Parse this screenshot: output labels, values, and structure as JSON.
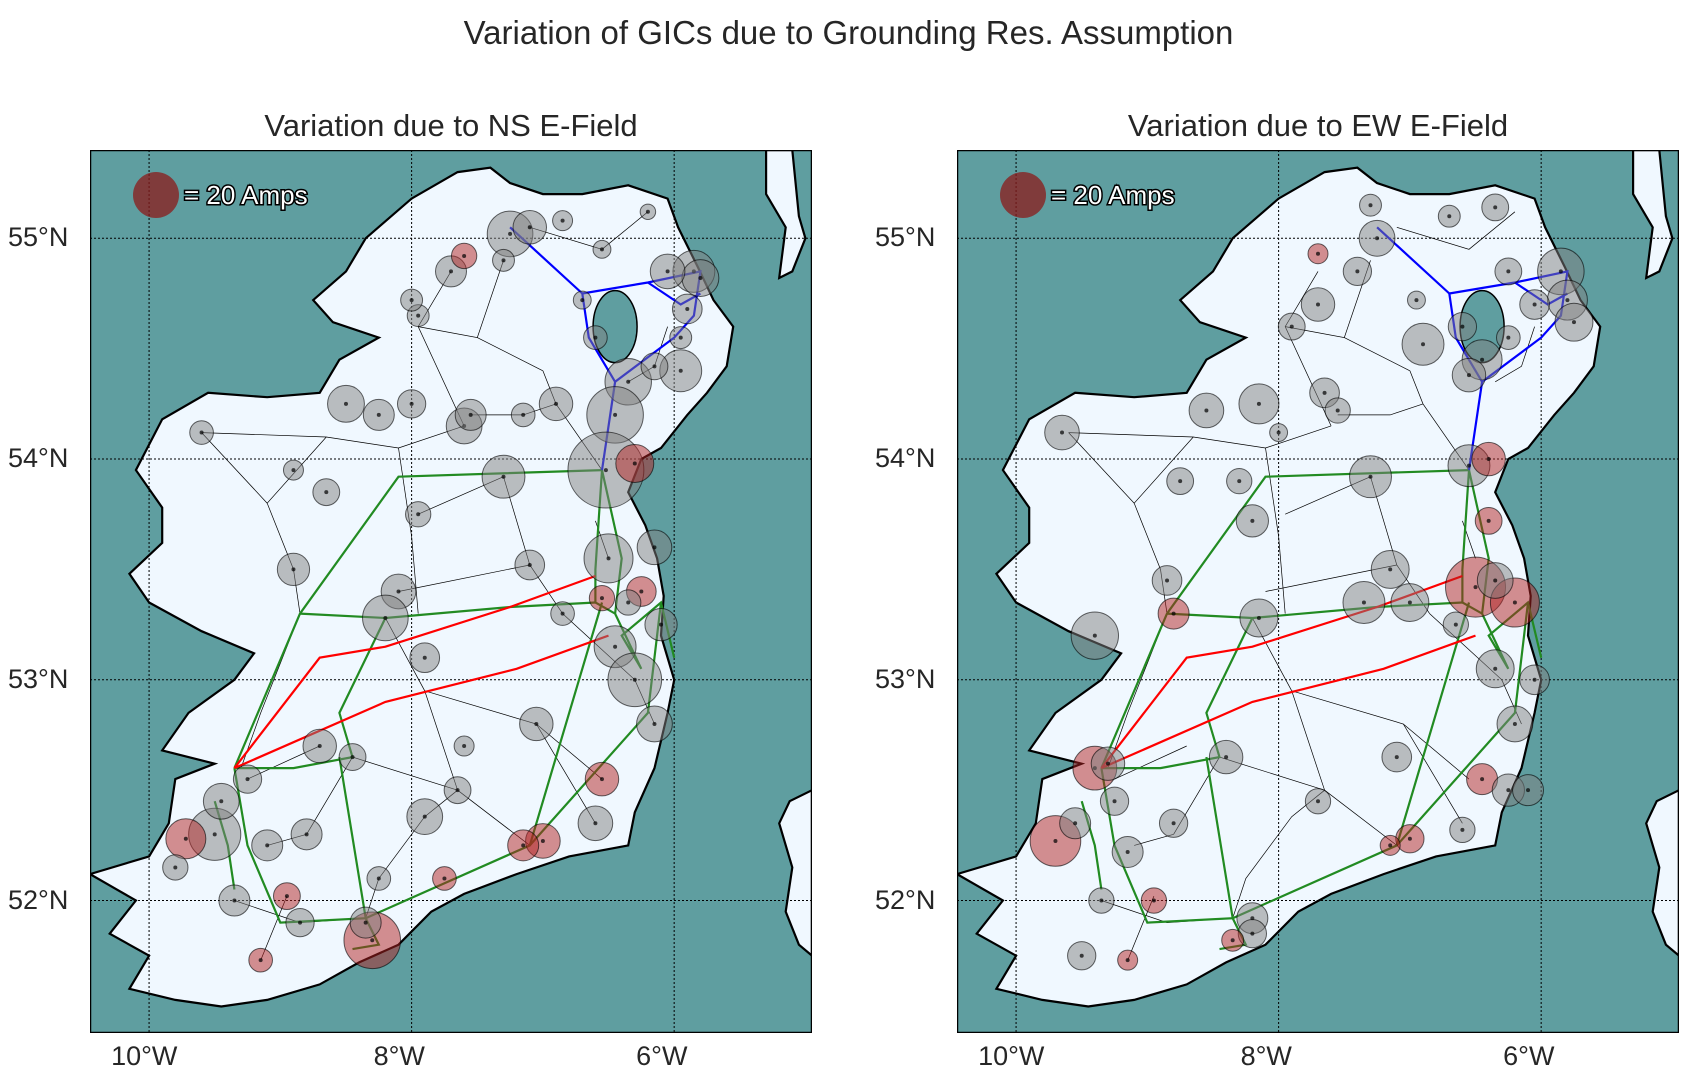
{
  "figure": {
    "title": "Variation of GICs due to Grounding Res. Assumption"
  },
  "colors": {
    "sea": "#5f9ea0",
    "land": "#f0f8ff",
    "coast": "#000000",
    "node_gray": "#808080",
    "node_red": "#b22222",
    "line_400kv": "#ff0000",
    "line_275kv": "#0000ff",
    "line_220kv": "#228b22",
    "line_110kv": "#000000"
  },
  "legend": {
    "marker_color": "#8b1a1a",
    "label": "= 20 Amps"
  },
  "axes": {
    "lat_ticks": [
      "55°N",
      "54°N",
      "53°N",
      "52°N"
    ],
    "lon_ticks": [
      "10°W",
      "8°W",
      "6°W"
    ]
  },
  "panels": [
    {
      "id": "ns",
      "title": "Variation due to NS E-Field",
      "nodes": [
        {
          "lon": -7.25,
          "lat": 55.02,
          "amps": 26,
          "color": "gray"
        },
        {
          "lon": -7.1,
          "lat": 55.05,
          "amps": 14,
          "color": "gray"
        },
        {
          "lon": -6.85,
          "lat": 55.08,
          "amps": 5,
          "color": "gray"
        },
        {
          "lon": -6.55,
          "lat": 54.95,
          "amps": 4,
          "color": "gray"
        },
        {
          "lon": -6.2,
          "lat": 55.12,
          "amps": 3,
          "color": "gray"
        },
        {
          "lon": -5.85,
          "lat": 54.85,
          "amps": 22,
          "color": "gray"
        },
        {
          "lon": -5.8,
          "lat": 54.82,
          "amps": 17,
          "color": "gray"
        },
        {
          "lon": -6.05,
          "lat": 54.85,
          "amps": 15,
          "color": "gray"
        },
        {
          "lon": -5.9,
          "lat": 54.68,
          "amps": 11,
          "color": "gray"
        },
        {
          "lon": -5.95,
          "lat": 54.55,
          "amps": 6,
          "color": "gray"
        },
        {
          "lon": -5.95,
          "lat": 54.4,
          "amps": 22,
          "color": "gray"
        },
        {
          "lon": -6.35,
          "lat": 54.35,
          "amps": 27,
          "color": "gray"
        },
        {
          "lon": -6.15,
          "lat": 54.42,
          "amps": 9,
          "color": "gray"
        },
        {
          "lon": -6.6,
          "lat": 54.55,
          "amps": 7,
          "color": "gray"
        },
        {
          "lon": -6.7,
          "lat": 54.72,
          "amps": 4,
          "color": "gray"
        },
        {
          "lon": -6.45,
          "lat": 54.2,
          "amps": 40,
          "color": "gray"
        },
        {
          "lon": -6.52,
          "lat": 53.95,
          "amps": 72,
          "color": "gray"
        },
        {
          "lon": -6.3,
          "lat": 53.98,
          "amps": 18,
          "color": "red"
        },
        {
          "lon": -6.9,
          "lat": 54.25,
          "amps": 14,
          "color": "gray"
        },
        {
          "lon": -7.15,
          "lat": 54.2,
          "amps": 7,
          "color": "gray"
        },
        {
          "lon": -7.6,
          "lat": 54.15,
          "amps": 16,
          "color": "gray"
        },
        {
          "lon": -7.55,
          "lat": 54.2,
          "amps": 12,
          "color": "gray"
        },
        {
          "lon": -8.0,
          "lat": 54.25,
          "amps": 10,
          "color": "gray"
        },
        {
          "lon": -8.5,
          "lat": 54.25,
          "amps": 17,
          "color": "gray"
        },
        {
          "lon": -8.25,
          "lat": 54.2,
          "amps": 12,
          "color": "gray"
        },
        {
          "lon": -7.95,
          "lat": 54.65,
          "amps": 6,
          "color": "gray"
        },
        {
          "lon": -7.7,
          "lat": 54.85,
          "amps": 12,
          "color": "gray"
        },
        {
          "lon": -7.6,
          "lat": 54.92,
          "amps": 8,
          "color": "red"
        },
        {
          "lon": -7.3,
          "lat": 54.9,
          "amps": 6,
          "color": "gray"
        },
        {
          "lon": -8.0,
          "lat": 54.72,
          "amps": 6,
          "color": "gray"
        },
        {
          "lon": -7.3,
          "lat": 53.92,
          "amps": 23,
          "color": "gray"
        },
        {
          "lon": -7.95,
          "lat": 53.75,
          "amps": 8,
          "color": "gray"
        },
        {
          "lon": -8.9,
          "lat": 53.95,
          "amps": 5,
          "color": "gray"
        },
        {
          "lon": -9.6,
          "lat": 54.12,
          "amps": 7,
          "color": "gray"
        },
        {
          "lon": -8.65,
          "lat": 53.85,
          "amps": 9,
          "color": "gray"
        },
        {
          "lon": -8.9,
          "lat": 53.5,
          "amps": 13,
          "color": "gray"
        },
        {
          "lon": -8.1,
          "lat": 53.4,
          "amps": 15,
          "color": "gray"
        },
        {
          "lon": -8.2,
          "lat": 53.28,
          "amps": 26,
          "color": "gray"
        },
        {
          "lon": -7.9,
          "lat": 53.1,
          "amps": 11,
          "color": "gray"
        },
        {
          "lon": -7.1,
          "lat": 53.52,
          "amps": 11,
          "color": "gray"
        },
        {
          "lon": -6.5,
          "lat": 53.55,
          "amps": 30,
          "color": "gray"
        },
        {
          "lon": -6.15,
          "lat": 53.6,
          "amps": 15,
          "color": "gray"
        },
        {
          "lon": -6.25,
          "lat": 53.4,
          "amps": 11,
          "color": "red"
        },
        {
          "lon": -6.35,
          "lat": 53.35,
          "amps": 8,
          "color": "gray"
        },
        {
          "lon": -6.55,
          "lat": 53.37,
          "amps": 8,
          "color": "red"
        },
        {
          "lon": -6.1,
          "lat": 53.25,
          "amps": 13,
          "color": "gray"
        },
        {
          "lon": -6.45,
          "lat": 53.15,
          "amps": 22,
          "color": "gray"
        },
        {
          "lon": -6.3,
          "lat": 53.0,
          "amps": 36,
          "color": "gray"
        },
        {
          "lon": -6.85,
          "lat": 53.3,
          "amps": 7,
          "color": "gray"
        },
        {
          "lon": -7.05,
          "lat": 52.8,
          "amps": 14,
          "color": "gray"
        },
        {
          "lon": -6.15,
          "lat": 52.8,
          "amps": 16,
          "color": "gray"
        },
        {
          "lon": -6.55,
          "lat": 52.55,
          "amps": 14,
          "color": "red"
        },
        {
          "lon": -6.6,
          "lat": 52.35,
          "amps": 15,
          "color": "gray"
        },
        {
          "lon": -7.6,
          "lat": 52.7,
          "amps": 5,
          "color": "gray"
        },
        {
          "lon": -7.65,
          "lat": 52.5,
          "amps": 9,
          "color": "gray"
        },
        {
          "lon": -7.9,
          "lat": 52.38,
          "amps": 16,
          "color": "gray"
        },
        {
          "lon": -7.0,
          "lat": 52.27,
          "amps": 15,
          "color": "red"
        },
        {
          "lon": -7.15,
          "lat": 52.25,
          "amps": 12,
          "color": "red"
        },
        {
          "lon": -8.7,
          "lat": 52.7,
          "amps": 14,
          "color": "gray"
        },
        {
          "lon": -8.45,
          "lat": 52.65,
          "amps": 9,
          "color": "gray"
        },
        {
          "lon": -9.25,
          "lat": 52.55,
          "amps": 10,
          "color": "gray"
        },
        {
          "lon": -9.5,
          "lat": 52.3,
          "amps": 34,
          "color": "gray"
        },
        {
          "lon": -9.45,
          "lat": 52.45,
          "amps": 16,
          "color": "gray"
        },
        {
          "lon": -9.72,
          "lat": 52.28,
          "amps": 20,
          "color": "red"
        },
        {
          "lon": -9.1,
          "lat": 52.25,
          "amps": 12,
          "color": "gray"
        },
        {
          "lon": -8.8,
          "lat": 52.3,
          "amps": 12,
          "color": "gray"
        },
        {
          "lon": -9.35,
          "lat": 52.0,
          "amps": 12,
          "color": "gray"
        },
        {
          "lon": -8.3,
          "lat": 51.82,
          "amps": 40,
          "color": "red"
        },
        {
          "lon": -8.35,
          "lat": 51.9,
          "amps": 12,
          "color": "gray"
        },
        {
          "lon": -8.25,
          "lat": 52.1,
          "amps": 7,
          "color": "gray"
        },
        {
          "lon": -8.95,
          "lat": 52.02,
          "amps": 9,
          "color": "red"
        },
        {
          "lon": -9.15,
          "lat": 51.73,
          "amps": 7,
          "color": "red"
        },
        {
          "lon": -8.85,
          "lat": 51.9,
          "amps": 10,
          "color": "gray"
        },
        {
          "lon": -9.8,
          "lat": 52.15,
          "amps": 8,
          "color": "gray"
        },
        {
          "lon": -7.75,
          "lat": 52.1,
          "amps": 7,
          "color": "red"
        }
      ]
    },
    {
      "id": "ew",
      "title": "Variation due to EW E-Field",
      "nodes": [
        {
          "lon": -7.25,
          "lat": 55.0,
          "amps": 16,
          "color": "gray"
        },
        {
          "lon": -7.3,
          "lat": 55.15,
          "amps": 6,
          "color": "gray"
        },
        {
          "lon": -6.7,
          "lat": 55.1,
          "amps": 6,
          "color": "gray"
        },
        {
          "lon": -6.35,
          "lat": 55.14,
          "amps": 9,
          "color": "gray"
        },
        {
          "lon": -5.85,
          "lat": 54.85,
          "amps": 27,
          "color": "gray"
        },
        {
          "lon": -5.8,
          "lat": 54.72,
          "amps": 20,
          "color": "gray"
        },
        {
          "lon": -5.75,
          "lat": 54.62,
          "amps": 18,
          "color": "gray"
        },
        {
          "lon": -6.05,
          "lat": 54.7,
          "amps": 11,
          "color": "gray"
        },
        {
          "lon": -6.25,
          "lat": 54.85,
          "amps": 9,
          "color": "gray"
        },
        {
          "lon": -6.6,
          "lat": 54.6,
          "amps": 10,
          "color": "gray"
        },
        {
          "lon": -6.25,
          "lat": 54.55,
          "amps": 7,
          "color": "gray"
        },
        {
          "lon": -6.45,
          "lat": 54.45,
          "amps": 20,
          "color": "gray"
        },
        {
          "lon": -6.55,
          "lat": 54.38,
          "amps": 14,
          "color": "gray"
        },
        {
          "lon": -6.9,
          "lat": 54.52,
          "amps": 22,
          "color": "gray"
        },
        {
          "lon": -6.95,
          "lat": 54.72,
          "amps": 4,
          "color": "gray"
        },
        {
          "lon": -6.55,
          "lat": 53.97,
          "amps": 22,
          "color": "gray"
        },
        {
          "lon": -6.4,
          "lat": 54.0,
          "amps": 14,
          "color": "red"
        },
        {
          "lon": -7.3,
          "lat": 53.92,
          "amps": 22,
          "color": "gray"
        },
        {
          "lon": -7.65,
          "lat": 54.3,
          "amps": 11,
          "color": "gray"
        },
        {
          "lon": -7.55,
          "lat": 54.22,
          "amps": 8,
          "color": "gray"
        },
        {
          "lon": -7.9,
          "lat": 54.6,
          "amps": 9,
          "color": "gray"
        },
        {
          "lon": -7.7,
          "lat": 54.7,
          "amps": 14,
          "color": "gray"
        },
        {
          "lon": -7.4,
          "lat": 54.85,
          "amps": 10,
          "color": "gray"
        },
        {
          "lon": -7.7,
          "lat": 54.93,
          "amps": 5,
          "color": "red"
        },
        {
          "lon": -8.15,
          "lat": 54.25,
          "amps": 20,
          "color": "gray"
        },
        {
          "lon": -8.0,
          "lat": 54.12,
          "amps": 4,
          "color": "gray"
        },
        {
          "lon": -8.55,
          "lat": 54.22,
          "amps": 15,
          "color": "gray"
        },
        {
          "lon": -9.65,
          "lat": 54.12,
          "amps": 15,
          "color": "gray"
        },
        {
          "lon": -9.4,
          "lat": 53.2,
          "amps": 28,
          "color": "gray"
        },
        {
          "lon": -8.85,
          "lat": 53.45,
          "amps": 11,
          "color": "gray"
        },
        {
          "lon": -8.2,
          "lat": 53.72,
          "amps": 13,
          "color": "gray"
        },
        {
          "lon": -8.3,
          "lat": 53.9,
          "amps": 8,
          "color": "gray"
        },
        {
          "lon": -8.75,
          "lat": 53.9,
          "amps": 9,
          "color": "gray"
        },
        {
          "lon": -7.15,
          "lat": 53.5,
          "amps": 18,
          "color": "gray"
        },
        {
          "lon": -6.5,
          "lat": 53.42,
          "amps": 45,
          "color": "red"
        },
        {
          "lon": -6.2,
          "lat": 53.35,
          "amps": 30,
          "color": "red"
        },
        {
          "lon": -6.35,
          "lat": 53.45,
          "amps": 16,
          "color": "gray"
        },
        {
          "lon": -6.65,
          "lat": 53.25,
          "amps": 8,
          "color": "gray"
        },
        {
          "lon": -6.4,
          "lat": 53.72,
          "amps": 9,
          "color": "red"
        },
        {
          "lon": -6.35,
          "lat": 53.05,
          "amps": 18,
          "color": "gray"
        },
        {
          "lon": -6.05,
          "lat": 53.0,
          "amps": 11,
          "color": "gray"
        },
        {
          "lon": -7.35,
          "lat": 53.35,
          "amps": 22,
          "color": "gray"
        },
        {
          "lon": -7.0,
          "lat": 53.35,
          "amps": 18,
          "color": "gray"
        },
        {
          "lon": -8.15,
          "lat": 53.28,
          "amps": 18,
          "color": "gray"
        },
        {
          "lon": -8.8,
          "lat": 53.3,
          "amps": 12,
          "color": "red"
        },
        {
          "lon": -6.2,
          "lat": 52.8,
          "amps": 16,
          "color": "gray"
        },
        {
          "lon": -6.45,
          "lat": 52.55,
          "amps": 12,
          "color": "red"
        },
        {
          "lon": -6.25,
          "lat": 52.5,
          "amps": 13,
          "color": "gray"
        },
        {
          "lon": -6.1,
          "lat": 52.5,
          "amps": 12,
          "color": "gray"
        },
        {
          "lon": -7.1,
          "lat": 52.65,
          "amps": 11,
          "color": "gray"
        },
        {
          "lon": -7.0,
          "lat": 52.28,
          "amps": 10,
          "color": "red"
        },
        {
          "lon": -6.6,
          "lat": 52.32,
          "amps": 8,
          "color": "gray"
        },
        {
          "lon": -7.7,
          "lat": 52.45,
          "amps": 8,
          "color": "gray"
        },
        {
          "lon": -8.4,
          "lat": 52.65,
          "amps": 14,
          "color": "gray"
        },
        {
          "lon": -9.4,
          "lat": 52.6,
          "amps": 24,
          "color": "red"
        },
        {
          "lon": -9.3,
          "lat": 52.62,
          "amps": 14,
          "color": "gray"
        },
        {
          "lon": -9.7,
          "lat": 52.27,
          "amps": 32,
          "color": "red"
        },
        {
          "lon": -9.55,
          "lat": 52.35,
          "amps": 12,
          "color": "gray"
        },
        {
          "lon": -9.25,
          "lat": 52.45,
          "amps": 10,
          "color": "gray"
        },
        {
          "lon": -9.15,
          "lat": 52.22,
          "amps": 12,
          "color": "gray"
        },
        {
          "lon": -8.8,
          "lat": 52.35,
          "amps": 10,
          "color": "gray"
        },
        {
          "lon": -8.95,
          "lat": 52.0,
          "amps": 8,
          "color": "red"
        },
        {
          "lon": -9.35,
          "lat": 52.0,
          "amps": 8,
          "color": "gray"
        },
        {
          "lon": -8.2,
          "lat": 51.92,
          "amps": 12,
          "color": "gray"
        },
        {
          "lon": -8.2,
          "lat": 51.85,
          "amps": 10,
          "color": "gray"
        },
        {
          "lon": -8.35,
          "lat": 51.82,
          "amps": 6,
          "color": "red"
        },
        {
          "lon": -9.5,
          "lat": 51.75,
          "amps": 10,
          "color": "gray"
        },
        {
          "lon": -9.15,
          "lat": 51.73,
          "amps": 5,
          "color": "red"
        },
        {
          "lon": -7.15,
          "lat": 52.25,
          "amps": 5,
          "color": "red"
        }
      ]
    }
  ]
}
